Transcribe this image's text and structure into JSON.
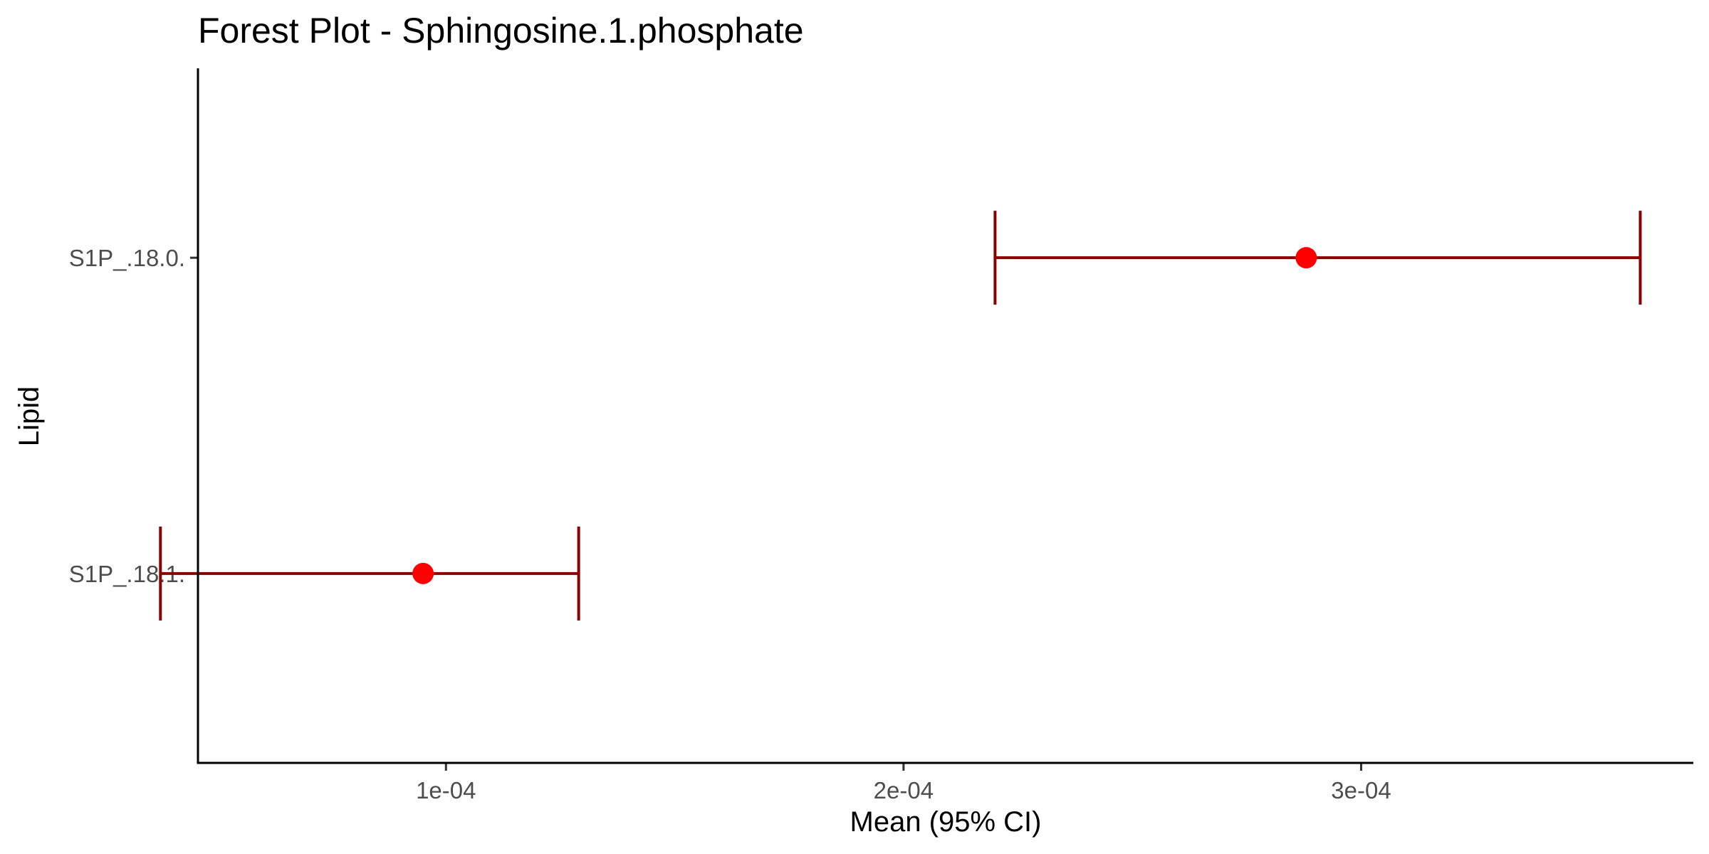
{
  "chart_data": {
    "type": "forest",
    "title": "Forest Plot - Sphingosine.1.phosphate",
    "xlabel": "Mean (95% CI)",
    "ylabel": "Lipid",
    "categories": [
      "S1P_.18.0.",
      "S1P_.18.1."
    ],
    "series": [
      {
        "points": [
          {
            "label": "S1P_.18.0.",
            "mean": 0.000288,
            "lower": 0.00022,
            "upper": 0.000361
          },
          {
            "label": "S1P_.18.1.",
            "mean": 9.5e-05,
            "lower": 3.76e-05,
            "upper": 0.000129
          }
        ]
      }
    ],
    "x_ticks": [
      0.0001,
      0.0002,
      0.0003
    ],
    "x_tick_labels": [
      "1e-04",
      "2e-04",
      "3e-04"
    ],
    "xlim": [
      4.58e-05,
      0.0003726
    ],
    "grid": false,
    "colors": {
      "point": "#ff0000",
      "errorbar": "#8b0000",
      "axis": "#000000",
      "tick_text": "#4d4d4d"
    }
  }
}
